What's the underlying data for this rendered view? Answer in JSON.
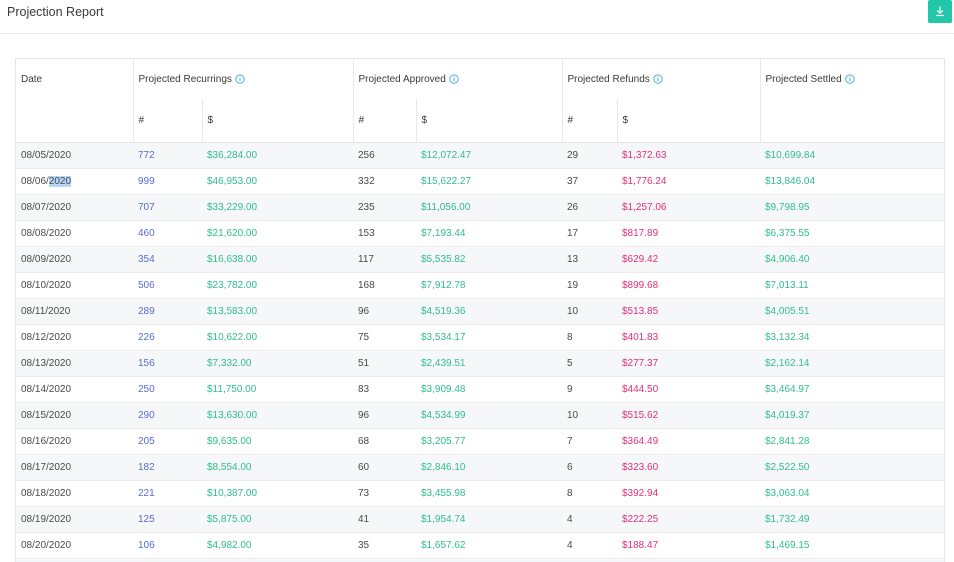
{
  "header": {
    "title": "Projection Report",
    "download_icon": "download-icon"
  },
  "columns": {
    "date": "Date",
    "recurrings": "Projected Recurrings",
    "approved": "Projected Approved",
    "refunds": "Projected Refunds",
    "settled": "Projected Settled",
    "count": "#",
    "amount": "$"
  },
  "colors": {
    "accent": "#22c7a9",
    "count_blue": "#5a6bd0",
    "positive": "#2fbf8a",
    "refund": "#e0307a"
  },
  "rows": [
    {
      "date": "08/05/2020",
      "rec_n": "772",
      "rec_amt": "$36,284.00",
      "app_n": "256",
      "app_amt": "$12,072.47",
      "ref_n": "29",
      "ref_amt": "$1,372.63",
      "settled": "$10,699.84"
    },
    {
      "date": "08/06/2020",
      "rec_n": "999",
      "rec_amt": "$46,953.00",
      "app_n": "332",
      "app_amt": "$15,622.27",
      "ref_n": "37",
      "ref_amt": "$1,776.24",
      "settled": "$13,846.04"
    },
    {
      "date": "08/07/2020",
      "rec_n": "707",
      "rec_amt": "$33,229.00",
      "app_n": "235",
      "app_amt": "$11,056.00",
      "ref_n": "26",
      "ref_amt": "$1,257.06",
      "settled": "$9,798.95"
    },
    {
      "date": "08/08/2020",
      "rec_n": "460",
      "rec_amt": "$21,620.00",
      "app_n": "153",
      "app_amt": "$7,193.44",
      "ref_n": "17",
      "ref_amt": "$817.89",
      "settled": "$6,375.55"
    },
    {
      "date": "08/09/2020",
      "rec_n": "354",
      "rec_amt": "$16,638.00",
      "app_n": "117",
      "app_amt": "$5,535.82",
      "ref_n": "13",
      "ref_amt": "$629.42",
      "settled": "$4,906.40"
    },
    {
      "date": "08/10/2020",
      "rec_n": "506",
      "rec_amt": "$23,782.00",
      "app_n": "168",
      "app_amt": "$7,912.78",
      "ref_n": "19",
      "ref_amt": "$899.68",
      "settled": "$7,013.11"
    },
    {
      "date": "08/11/2020",
      "rec_n": "289",
      "rec_amt": "$13,583.00",
      "app_n": "96",
      "app_amt": "$4,519.36",
      "ref_n": "10",
      "ref_amt": "$513.85",
      "settled": "$4,005.51"
    },
    {
      "date": "08/12/2020",
      "rec_n": "226",
      "rec_amt": "$10,622.00",
      "app_n": "75",
      "app_amt": "$3,534.17",
      "ref_n": "8",
      "ref_amt": "$401.83",
      "settled": "$3,132.34"
    },
    {
      "date": "08/13/2020",
      "rec_n": "156",
      "rec_amt": "$7,332.00",
      "app_n": "51",
      "app_amt": "$2,439.51",
      "ref_n": "5",
      "ref_amt": "$277.37",
      "settled": "$2,162.14"
    },
    {
      "date": "08/14/2020",
      "rec_n": "250",
      "rec_amt": "$11,750.00",
      "app_n": "83",
      "app_amt": "$3,909.48",
      "ref_n": "9",
      "ref_amt": "$444.50",
      "settled": "$3,464.97"
    },
    {
      "date": "08/15/2020",
      "rec_n": "290",
      "rec_amt": "$13,630.00",
      "app_n": "96",
      "app_amt": "$4,534.99",
      "ref_n": "10",
      "ref_amt": "$515.62",
      "settled": "$4,019.37"
    },
    {
      "date": "08/16/2020",
      "rec_n": "205",
      "rec_amt": "$9,635.00",
      "app_n": "68",
      "app_amt": "$3,205.77",
      "ref_n": "7",
      "ref_amt": "$364.49",
      "settled": "$2,841.28"
    },
    {
      "date": "08/17/2020",
      "rec_n": "182",
      "rec_amt": "$8,554.00",
      "app_n": "60",
      "app_amt": "$2,846.10",
      "ref_n": "6",
      "ref_amt": "$323.60",
      "settled": "$2,522.50"
    },
    {
      "date": "08/18/2020",
      "rec_n": "221",
      "rec_amt": "$10,387.00",
      "app_n": "73",
      "app_amt": "$3,455.98",
      "ref_n": "8",
      "ref_amt": "$392.94",
      "settled": "$3,063.04"
    },
    {
      "date": "08/19/2020",
      "rec_n": "125",
      "rec_amt": "$5,875.00",
      "app_n": "41",
      "app_amt": "$1,954.74",
      "ref_n": "4",
      "ref_amt": "$222.25",
      "settled": "$1,732.49"
    },
    {
      "date": "08/20/2020",
      "rec_n": "106",
      "rec_amt": "$4,982.00",
      "app_n": "35",
      "app_amt": "$1,657.62",
      "ref_n": "4",
      "ref_amt": "$188.47",
      "settled": "$1,469.15"
    },
    {
      "date": "",
      "rec_n": "",
      "rec_amt": "",
      "app_n": "",
      "app_amt": "",
      "ref_n": "",
      "ref_amt": "",
      "settled": ""
    }
  ]
}
